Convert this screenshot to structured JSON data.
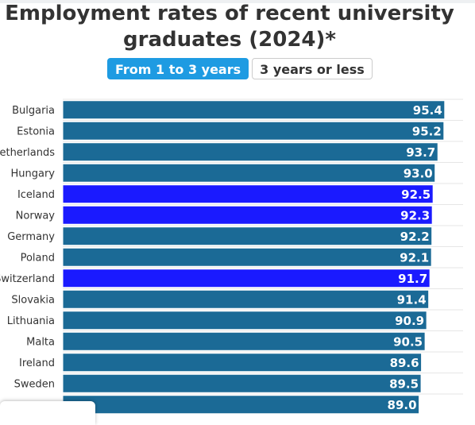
{
  "title": {
    "line1": "Employment rates of recent university",
    "line2": "graduates (2024)*"
  },
  "tabs": [
    {
      "label": "From 1 to 3 years",
      "active": true
    },
    {
      "label": "3 years or less",
      "active": false
    }
  ],
  "colors": {
    "bar": "#1b6a96",
    "highlight": "#1a1aff",
    "tab_active": "#1e9be2",
    "grid": "#e6e6e6"
  },
  "chart_data": {
    "type": "bar",
    "orientation": "horizontal",
    "categories": [
      "Bulgaria",
      "Estonia",
      "Netherlands",
      "Hungary",
      "Iceland",
      "Norway",
      "Germany",
      "Poland",
      "Switzerland",
      "Slovakia",
      "Lithuania",
      "Malta",
      "Ireland",
      "Sweden",
      ""
    ],
    "values": [
      95.4,
      95.2,
      93.7,
      93.0,
      92.5,
      92.3,
      92.2,
      92.1,
      91.7,
      91.4,
      90.9,
      90.5,
      89.6,
      89.5,
      89.0
    ],
    "highlighted": [
      false,
      false,
      false,
      false,
      true,
      true,
      false,
      false,
      true,
      false,
      false,
      false,
      false,
      false,
      false
    ],
    "data_labels": [
      "95.4",
      "95.2",
      "93.7",
      "93.0",
      "92.5",
      "92.3",
      "92.2",
      "92.1",
      "91.7",
      "91.4",
      "90.9",
      "90.5",
      "89.6",
      "89.5",
      "89.0"
    ],
    "grid": true
  }
}
